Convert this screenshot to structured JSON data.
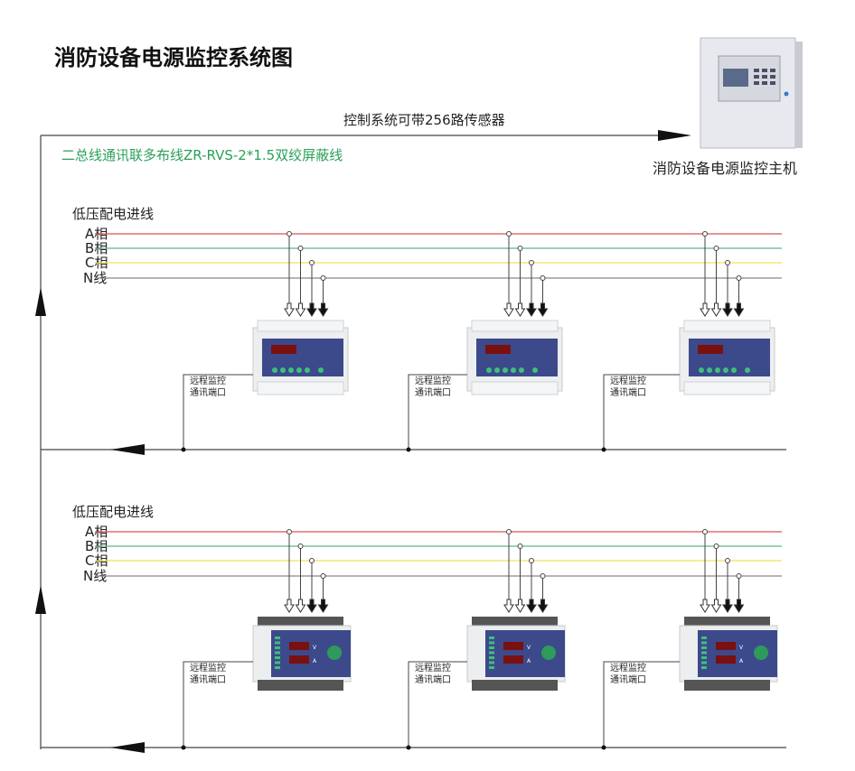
{
  "title": "消防设备电源监控系统图",
  "host": {
    "caption": "消防设备电源监控主机",
    "capacity_note": "控制系统可带256路传感器"
  },
  "bus_note": "二总线通讯联多布线ZR-RVS-2*1.5双绞屏蔽线",
  "colors": {
    "phase_a": "#d9534f",
    "phase_b": "#5cb88a",
    "phase_c": "#f2e15a",
    "neutral": "#888888",
    "bus_note": "#2aa05a",
    "panel": "#3c4a8c"
  },
  "sections": [
    {
      "label": "低压配电进线",
      "lines": [
        "A相",
        "B相",
        "C相",
        "N线"
      ],
      "device_type": "rail-module",
      "modules": [
        {
          "port_label": [
            "远程监控",
            "通讯端口"
          ],
          "display": "8888"
        },
        {
          "port_label": [
            "远程监控",
            "通讯端口"
          ],
          "display": "8888"
        },
        {
          "port_label": [
            "远程监控",
            "通讯端口"
          ],
          "display": "8888"
        }
      ]
    },
    {
      "label": "低压配电进线",
      "lines": [
        "A相",
        "B相",
        "C相",
        "N线"
      ],
      "device_type": "panel-module",
      "modules": [
        {
          "port_label": [
            "远程监控",
            "通讯端口"
          ],
          "display_v": "V",
          "display_a": "A"
        },
        {
          "port_label": [
            "远程监控",
            "通讯端口"
          ],
          "display_v": "V",
          "display_a": "A"
        },
        {
          "port_label": [
            "远程监控",
            "通讯端口"
          ],
          "display_v": "V",
          "display_a": "A"
        }
      ]
    }
  ]
}
